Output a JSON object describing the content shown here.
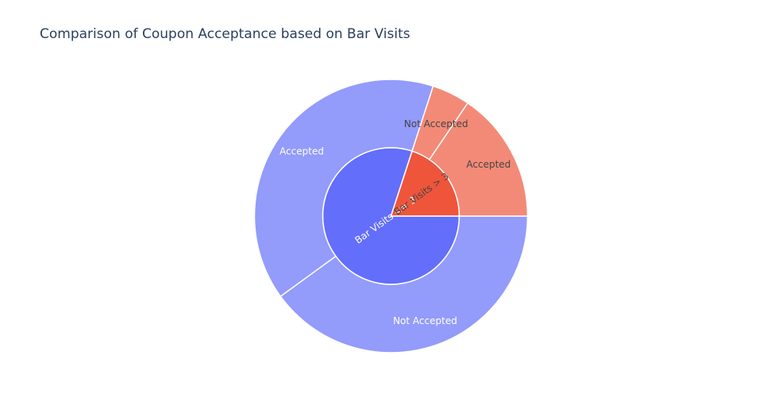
{
  "title": "Comparison of Coupon Acceptance based on Bar Visits",
  "chart_data": {
    "type": "sunburst",
    "title": "Comparison of Coupon Acceptance based on Bar Visits",
    "colors": {
      "inner_a": "#636efa",
      "outer_a": "#939bfb",
      "inner_b": "#ef553b",
      "outer_b": "#f38a77",
      "label_light": "#ffffff",
      "label_dark": "#444444",
      "border": "#ffffff"
    },
    "start_angle_deg": 0,
    "direction": "clockwise",
    "nodes": [
      {
        "id": "le3",
        "label": "Bar Visits <= 3",
        "share": 0.8,
        "color": "#636efa",
        "label_color": "#ffffff",
        "children": [
          {
            "id": "le3-not",
            "label": "Not Accepted",
            "share": 0.4,
            "color": "#939bfb",
            "label_color": "#ffffff"
          },
          {
            "id": "le3-acc",
            "label": "Accepted",
            "share": 0.4,
            "color": "#939bfb",
            "label_color": "#ffffff"
          }
        ]
      },
      {
        "id": "gt3",
        "label": "Bar Visits > 3",
        "share": 0.2,
        "color": "#ef553b",
        "label_color": "#444444",
        "children": [
          {
            "id": "gt3-not",
            "label": "Not Accepted",
            "share": 0.045,
            "color": "#f38a77",
            "label_color": "#444444"
          },
          {
            "id": "gt3-acc",
            "label": "Accepted",
            "share": 0.155,
            "color": "#f38a77",
            "label_color": "#444444"
          }
        ]
      }
    ]
  }
}
